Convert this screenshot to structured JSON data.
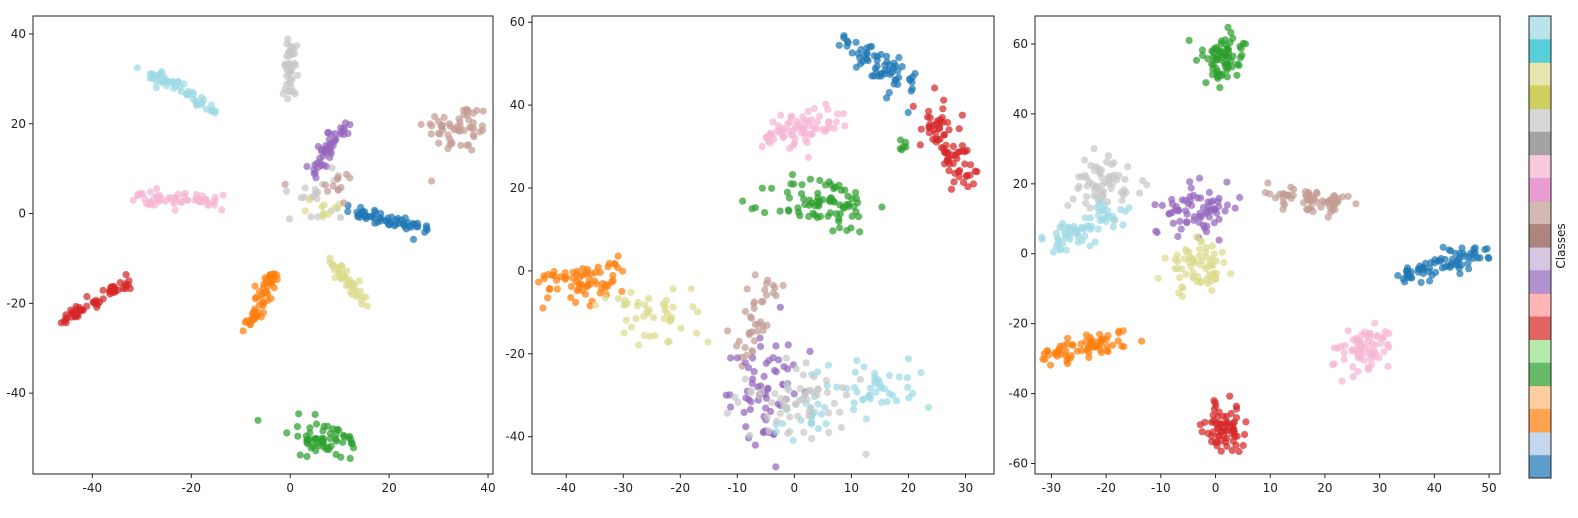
{
  "colorbar": {
    "label": "Classes",
    "colors": [
      "#1f77b4",
      "#aec7e8",
      "#ff7f0e",
      "#ffbb78",
      "#2ca02c",
      "#98df8a",
      "#d62728",
      "#ff9896",
      "#9467bd",
      "#c5b0d5",
      "#8c564b",
      "#c49c94",
      "#e377c2",
      "#f7b6d2",
      "#7f7f7f",
      "#c7c7c7",
      "#bcbd22",
      "#dbdb8d",
      "#17becf",
      "#9edae5"
    ]
  },
  "chart_data": [
    {
      "type": "scatter",
      "xlim": [
        -52,
        41
      ],
      "ylim": [
        -58,
        44
      ],
      "x_ticks": [
        "-40",
        "-20",
        "0",
        "20",
        "40"
      ],
      "x_tick_values": [
        -40,
        -20,
        0,
        20,
        40
      ],
      "y_ticks": [
        "-40",
        "-20",
        "0",
        "20",
        "40"
      ],
      "y_tick_values": [
        -40,
        -20,
        0,
        20,
        40
      ],
      "grid": false,
      "clusters": [
        {
          "color": "#9edae5",
          "shape": "line",
          "from": [
            -29,
            32
          ],
          "to": [
            -15,
            23
          ],
          "spread": 0.8,
          "n": 55
        },
        {
          "color": "#c7c7c7",
          "shape": "line",
          "from": [
            0,
            39
          ],
          "to": [
            0,
            26
          ],
          "spread": 0.6,
          "n": 45
        },
        {
          "color": "#c49c94",
          "shape": "blob",
          "center": [
            34,
            19
          ],
          "sx": 3.5,
          "sy": 2.8,
          "n": 55
        },
        {
          "color": "#9467bd",
          "shape": "line",
          "from": [
            11,
            20
          ],
          "to": [
            5,
            9
          ],
          "spread": 0.8,
          "n": 50
        },
        {
          "color": "#f7b6d2",
          "shape": "line",
          "from": [
            -31,
            3.5
          ],
          "to": [
            -14,
            3
          ],
          "spread": 0.9,
          "n": 60
        },
        {
          "color": "#1f77b4",
          "shape": "line",
          "from": [
            12,
            0.5
          ],
          "to": [
            27,
            -3.5
          ],
          "spread": 0.7,
          "n": 60
        },
        {
          "color": "#d62728",
          "shape": "line",
          "from": [
            -47,
            -24.5
          ],
          "to": [
            -32,
            -15
          ],
          "spread": 0.7,
          "n": 60
        },
        {
          "color": "#ff7f0e",
          "shape": "line",
          "from": [
            -9,
            -26
          ],
          "to": [
            -3,
            -13
          ],
          "spread": 0.8,
          "n": 55
        },
        {
          "color": "#dbdb8d",
          "shape": "line",
          "from": [
            8,
            -10
          ],
          "to": [
            15,
            -20
          ],
          "spread": 0.7,
          "n": 45
        },
        {
          "color": "#2ca02c",
          "shape": "blob",
          "center": [
            7,
            -50
          ],
          "sx": 3.5,
          "sy": 1.8,
          "n": 60
        },
        {
          "color": "#c7c7c7",
          "shape": "blob",
          "center": [
            5,
            4
          ],
          "sx": 3,
          "sy": 2.5,
          "n": 20
        },
        {
          "color": "#dbdb8d",
          "shape": "blob",
          "center": [
            6,
            0
          ],
          "sx": 2.5,
          "sy": 1.5,
          "n": 10
        },
        {
          "color": "#c49c94",
          "shape": "blob",
          "center": [
            8,
            6
          ],
          "sx": 3,
          "sy": 1.5,
          "n": 12
        }
      ]
    },
    {
      "type": "scatter",
      "xlim": [
        -46,
        35
      ],
      "ylim": [
        -49,
        61.5
      ],
      "x_ticks": [
        "-40",
        "-30",
        "-20",
        "-10",
        "0",
        "10",
        "20",
        "30"
      ],
      "x_tick_values": [
        -40,
        -30,
        -20,
        -10,
        0,
        10,
        20,
        30
      ],
      "y_ticks": [
        "-40",
        "-20",
        "0",
        "20",
        "40",
        "60"
      ],
      "y_tick_values": [
        -40,
        -20,
        0,
        20,
        40,
        60
      ],
      "grid": false,
      "clusters": [
        {
          "color": "#1f77b4",
          "shape": "line",
          "from": [
            9,
            55
          ],
          "to": [
            21,
            44
          ],
          "spread": 2,
          "n": 65
        },
        {
          "color": "#d62728",
          "shape": "line",
          "from": [
            24,
            38
          ],
          "to": [
            30,
            21
          ],
          "spread": 2,
          "n": 75
        },
        {
          "color": "#f7b6d2",
          "shape": "line",
          "from": [
            -5,
            32
          ],
          "to": [
            7,
            38
          ],
          "spread": 2,
          "n": 70
        },
        {
          "color": "#2ca02c",
          "shape": "blob",
          "center": [
            5,
            16
          ],
          "sx": 4.5,
          "sy": 3.5,
          "n": 80
        },
        {
          "color": "#2ca02c",
          "shape": "blob",
          "center": [
            19,
            30
          ],
          "sx": 0.8,
          "sy": 0.8,
          "n": 6
        },
        {
          "color": "#ff7f0e",
          "shape": "line",
          "from": [
            -42,
            -5
          ],
          "to": [
            -31,
            0
          ],
          "spread": 2.5,
          "n": 70
        },
        {
          "color": "#dbdb8d",
          "shape": "blob",
          "center": [
            -23,
            -10
          ],
          "sx": 5,
          "sy": 3.5,
          "n": 45
        },
        {
          "color": "#c49c94",
          "shape": "line",
          "from": [
            -9,
            -20
          ],
          "to": [
            -5,
            -2
          ],
          "spread": 1.8,
          "n": 40
        },
        {
          "color": "#9467bd",
          "shape": "blob",
          "center": [
            -5,
            -28
          ],
          "sx": 3,
          "sy": 6,
          "n": 65
        },
        {
          "color": "#9edae5",
          "shape": "blob",
          "center": [
            14,
            -28
          ],
          "sx": 4.5,
          "sy": 3.5,
          "n": 45
        },
        {
          "color": "#9edae5",
          "shape": "blob",
          "center": [
            3,
            -35
          ],
          "sx": 4,
          "sy": 3,
          "n": 25
        },
        {
          "color": "#c7c7c7",
          "shape": "blob",
          "center": [
            0,
            -32
          ],
          "sx": 5,
          "sy": 5.5,
          "n": 60
        }
      ]
    },
    {
      "type": "scatter",
      "xlim": [
        -33,
        52
      ],
      "ylim": [
        -63,
        68
      ],
      "x_ticks": [
        "-30",
        "-20",
        "-10",
        "0",
        "10",
        "20",
        "30",
        "40",
        "50"
      ],
      "x_tick_values": [
        -30,
        -20,
        -10,
        0,
        10,
        20,
        30,
        40,
        50
      ],
      "y_ticks": [
        "-60",
        "-40",
        "-20",
        "0",
        "20",
        "40",
        "60"
      ],
      "y_tick_values": [
        -60,
        -40,
        -20,
        0,
        20,
        40,
        60
      ],
      "grid": false,
      "clusters": [
        {
          "color": "#2ca02c",
          "shape": "blob",
          "center": [
            1.5,
            56
          ],
          "sx": 2.2,
          "sy": 3.5,
          "n": 70
        },
        {
          "color": "#c7c7c7",
          "shape": "blob",
          "center": [
            -20.5,
            20
          ],
          "sx": 3,
          "sy": 3.5,
          "n": 65
        },
        {
          "color": "#9edae5",
          "shape": "line",
          "from": [
            -29,
            3
          ],
          "to": [
            -18,
            13
          ],
          "spread": 2,
          "n": 65
        },
        {
          "color": "#9467bd",
          "shape": "blob",
          "center": [
            -3,
            12
          ],
          "sx": 3.5,
          "sy": 3.5,
          "n": 70
        },
        {
          "color": "#dbdb8d",
          "shape": "blob",
          "center": [
            -3.5,
            -4
          ],
          "sx": 2.5,
          "sy": 4,
          "n": 65
        },
        {
          "color": "#c49c94",
          "shape": "line",
          "from": [
            11,
            17
          ],
          "to": [
            23,
            14
          ],
          "spread": 1.5,
          "n": 65
        },
        {
          "color": "#1f77b4",
          "shape": "line",
          "from": [
            35,
            -7
          ],
          "to": [
            49,
            1.5
          ],
          "spread": 1.5,
          "n": 75
        },
        {
          "color": "#ff7f0e",
          "shape": "line",
          "from": [
            -30,
            -30
          ],
          "to": [
            -18,
            -24
          ],
          "spread": 1.8,
          "n": 70
        },
        {
          "color": "#f7b6d2",
          "shape": "blob",
          "center": [
            27,
            -27
          ],
          "sx": 3,
          "sy": 3,
          "n": 70
        },
        {
          "color": "#d62728",
          "shape": "blob",
          "center": [
            1.5,
            -50
          ],
          "sx": 2,
          "sy": 3.5,
          "n": 65
        }
      ]
    }
  ]
}
